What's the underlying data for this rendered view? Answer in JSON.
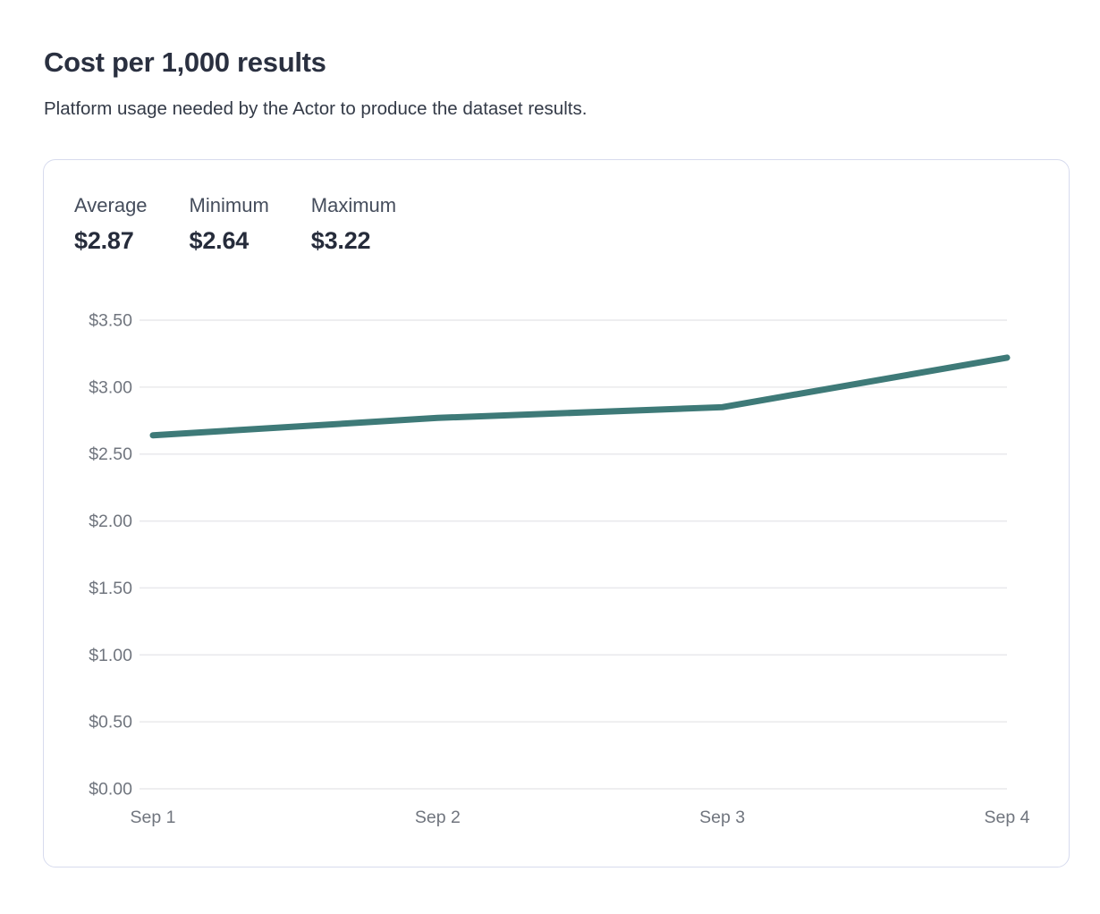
{
  "page": {
    "title": "Cost per 1,000 results",
    "subtitle": "Platform usage needed by the Actor to produce the dataset results."
  },
  "stats": [
    {
      "label": "Average",
      "value": "$2.87"
    },
    {
      "label": "Minimum",
      "value": "$2.64"
    },
    {
      "label": "Maximum",
      "value": "$3.22"
    }
  ],
  "chart_data": {
    "type": "line",
    "title": "Cost per 1,000 results",
    "categories": [
      "Sep 1",
      "Sep 2",
      "Sep 3",
      "Sep 4"
    ],
    "values": [
      2.64,
      2.77,
      2.85,
      3.22
    ],
    "series": [
      {
        "name": "Cost per 1,000 results",
        "values": [
          2.64,
          2.77,
          2.85,
          3.22
        ]
      }
    ],
    "ylim": [
      0,
      3.5
    ],
    "y_tick_step": 0.5,
    "y_ticks": [
      "$0.00",
      "$0.50",
      "$1.00",
      "$1.50",
      "$2.00",
      "$2.50",
      "$3.00",
      "$3.50"
    ],
    "grid": true,
    "legend_position": "none",
    "line_color": "#3e7a78",
    "line_width": 7,
    "xlabel": "",
    "ylabel": ""
  },
  "colors": {
    "title_text": "#2a3040",
    "subtitle_text": "#333a47",
    "stat_label_text": "#454d5c",
    "stat_value_text": "#262c3b",
    "tick_text": "#70757e",
    "gridline": "#e9e9ec",
    "card_border": "#d7dbee",
    "background": "#ffffff"
  }
}
